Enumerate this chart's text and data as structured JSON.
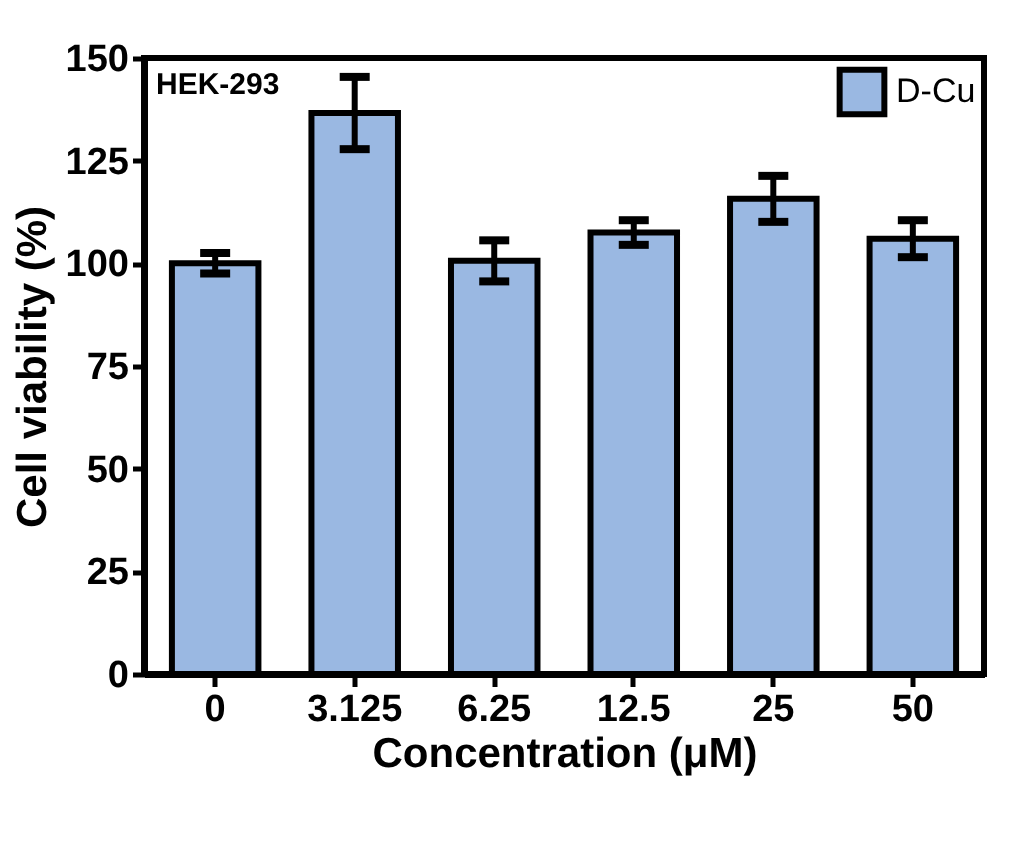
{
  "chart_data": {
    "type": "bar",
    "xlabel": "Concentration (μM)",
    "ylabel": "Cell viability (%)",
    "annotations": [
      "HEK-293"
    ],
    "categories": [
      "0",
      "3.125",
      "6.25",
      "12.5",
      "25",
      "50"
    ],
    "series": [
      {
        "name": "D-Cu",
        "color": "#9ab8e2",
        "values": [
          100,
          136.6,
          100.6,
          107.5,
          115.7,
          106
        ],
        "errors": [
          2.5,
          8.8,
          5,
          3,
          5.6,
          4.5
        ]
      }
    ],
    "ylim": [
      0,
      150
    ],
    "yticks": [
      0,
      25,
      50,
      75,
      100,
      125,
      150
    ],
    "grid": false,
    "legend": "top right"
  }
}
